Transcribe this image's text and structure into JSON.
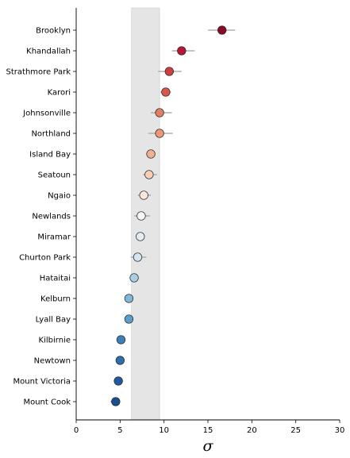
{
  "chart_data": {
    "type": "scatter",
    "xlabel": "σ",
    "ylabel": "",
    "xlim": [
      0,
      30
    ],
    "xticks": [
      0,
      5,
      10,
      15,
      20,
      25,
      30
    ],
    "grid": false,
    "legend": "none",
    "shaded_band": {
      "x_start": 6.3,
      "x_end": 9.5,
      "color": "#e5e5e5"
    },
    "categories": [
      "Brooklyn",
      "Khandallah",
      "Strathmore Park",
      "Karori",
      "Johnsonville",
      "Northland",
      "Island Bay",
      "Seatoun",
      "Ngaio",
      "Newlands",
      "Miramar",
      "Churton Park",
      "Hataitai",
      "Kelburn",
      "Lyall Bay",
      "Kilbirnie",
      "Newtown",
      "Mount Victoria",
      "Mount Cook"
    ],
    "values": [
      16.6,
      12.0,
      10.6,
      10.2,
      9.5,
      9.5,
      8.5,
      8.3,
      7.7,
      7.4,
      7.3,
      7.0,
      6.6,
      6.0,
      6.0,
      5.1,
      5.0,
      4.8,
      4.5
    ],
    "err_low": [
      15.0,
      10.9,
      9.3,
      9.6,
      8.5,
      8.2,
      8.0,
      7.6,
      7.0,
      6.6,
      7.0,
      6.2,
      6.1,
      6.0,
      6.0,
      5.1,
      5.0,
      4.8,
      3.9
    ],
    "err_high": [
      18.1,
      13.5,
      12.0,
      10.8,
      10.9,
      11.0,
      8.8,
      9.2,
      8.5,
      8.4,
      7.4,
      8.0,
      7.1,
      6.0,
      6.0,
      5.1,
      5.0,
      4.8,
      5.0
    ],
    "colors": [
      "#8b0a24",
      "#b8172f",
      "#cf3e3e",
      "#d8574b",
      "#e37d65",
      "#eb9876",
      "#f2b093",
      "#f8cfb3",
      "#fbe7dc",
      "#f7f7f7",
      "#e4edf5",
      "#d3e5f0",
      "#a9cfe4",
      "#81b8d9",
      "#5c9ecb",
      "#3c7fba",
      "#2d6cad",
      "#225aa1",
      "#1a4e8f"
    ]
  }
}
